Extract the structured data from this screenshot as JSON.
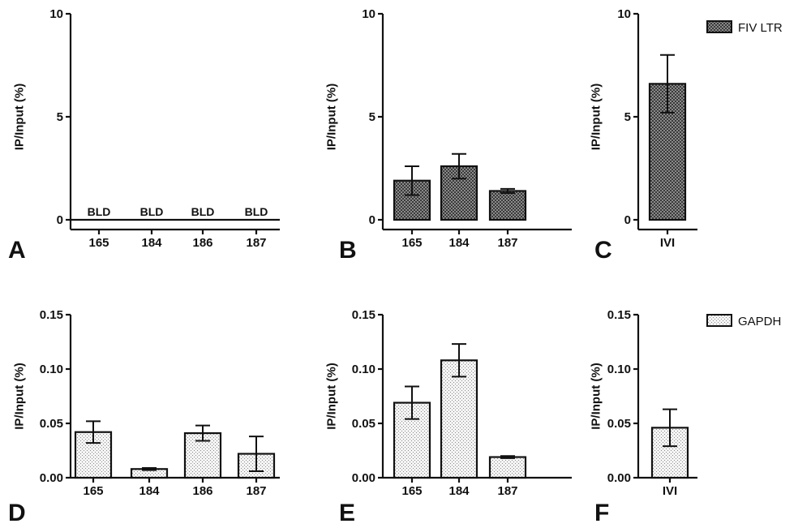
{
  "legend": {
    "fiv": {
      "label": "FIV LTR"
    },
    "gapdh": {
      "label": "GAPDH"
    }
  },
  "colors": {
    "ink": "#111111",
    "fiv_fill": "#6f6f6f",
    "gapdh_fill": "#e9e9e9"
  },
  "chart_data": [
    {
      "id": "A",
      "panel_label": "A",
      "type": "bar",
      "fill": "fiv",
      "ylabel": "IP/Input (%)",
      "ylim": [
        0,
        10
      ],
      "yticks": [
        "0",
        "5",
        "10"
      ],
      "ytick_values": [
        0,
        5,
        10
      ],
      "categories": [
        "165",
        "184",
        "186",
        "187"
      ],
      "values": [
        0,
        0,
        0,
        0
      ],
      "errors": [
        0,
        0,
        0,
        0
      ],
      "annotations": [
        "BLD",
        "BLD",
        "BLD",
        "BLD"
      ]
    },
    {
      "id": "B",
      "panel_label": "B",
      "type": "bar",
      "fill": "fiv",
      "ylabel": "IP/Input (%)",
      "ylim": [
        0,
        10
      ],
      "yticks": [
        "0",
        "5",
        "10"
      ],
      "ytick_values": [
        0,
        5,
        10
      ],
      "categories": [
        "165",
        "184",
        "187"
      ],
      "values": [
        1.9,
        2.6,
        1.4
      ],
      "errors": [
        0.7,
        0.6,
        0.1
      ]
    },
    {
      "id": "C",
      "panel_label": "C",
      "type": "bar",
      "fill": "fiv",
      "ylabel": "IP/Input (%)",
      "ylim": [
        0,
        10
      ],
      "yticks": [
        "0",
        "5",
        "10"
      ],
      "ytick_values": [
        0,
        5,
        10
      ],
      "categories": [
        "IVI"
      ],
      "values": [
        6.6
      ],
      "errors": [
        1.4
      ]
    },
    {
      "id": "D",
      "panel_label": "D",
      "type": "bar",
      "fill": "gapdh",
      "ylabel": "IP/Input (%)",
      "ylim": [
        0,
        0.15
      ],
      "yticks": [
        "0.00",
        "0.05",
        "0.10",
        "0.15"
      ],
      "ytick_values": [
        0,
        0.05,
        0.1,
        0.15
      ],
      "categories": [
        "165",
        "184",
        "186",
        "187"
      ],
      "values": [
        0.042,
        0.008,
        0.041,
        0.022
      ],
      "errors": [
        0.01,
        0.001,
        0.007,
        0.016
      ]
    },
    {
      "id": "E",
      "panel_label": "E",
      "type": "bar",
      "fill": "gapdh",
      "ylabel": "IP/Input (%)",
      "ylim": [
        0,
        0.15
      ],
      "yticks": [
        "0.00",
        "0.05",
        "0.10",
        "0.15"
      ],
      "ytick_values": [
        0,
        0.05,
        0.1,
        0.15
      ],
      "categories": [
        "165",
        "184",
        "187"
      ],
      "values": [
        0.069,
        0.108,
        0.019
      ],
      "errors": [
        0.015,
        0.015,
        0.001
      ]
    },
    {
      "id": "F",
      "panel_label": "F",
      "type": "bar",
      "fill": "gapdh",
      "ylabel": "IP/Input (%)",
      "ylim": [
        0,
        0.15
      ],
      "yticks": [
        "0.00",
        "0.05",
        "0.10",
        "0.15"
      ],
      "ytick_values": [
        0,
        0.05,
        0.1,
        0.15
      ],
      "categories": [
        "IVI"
      ],
      "values": [
        0.046
      ],
      "errors": [
        0.017
      ]
    }
  ]
}
